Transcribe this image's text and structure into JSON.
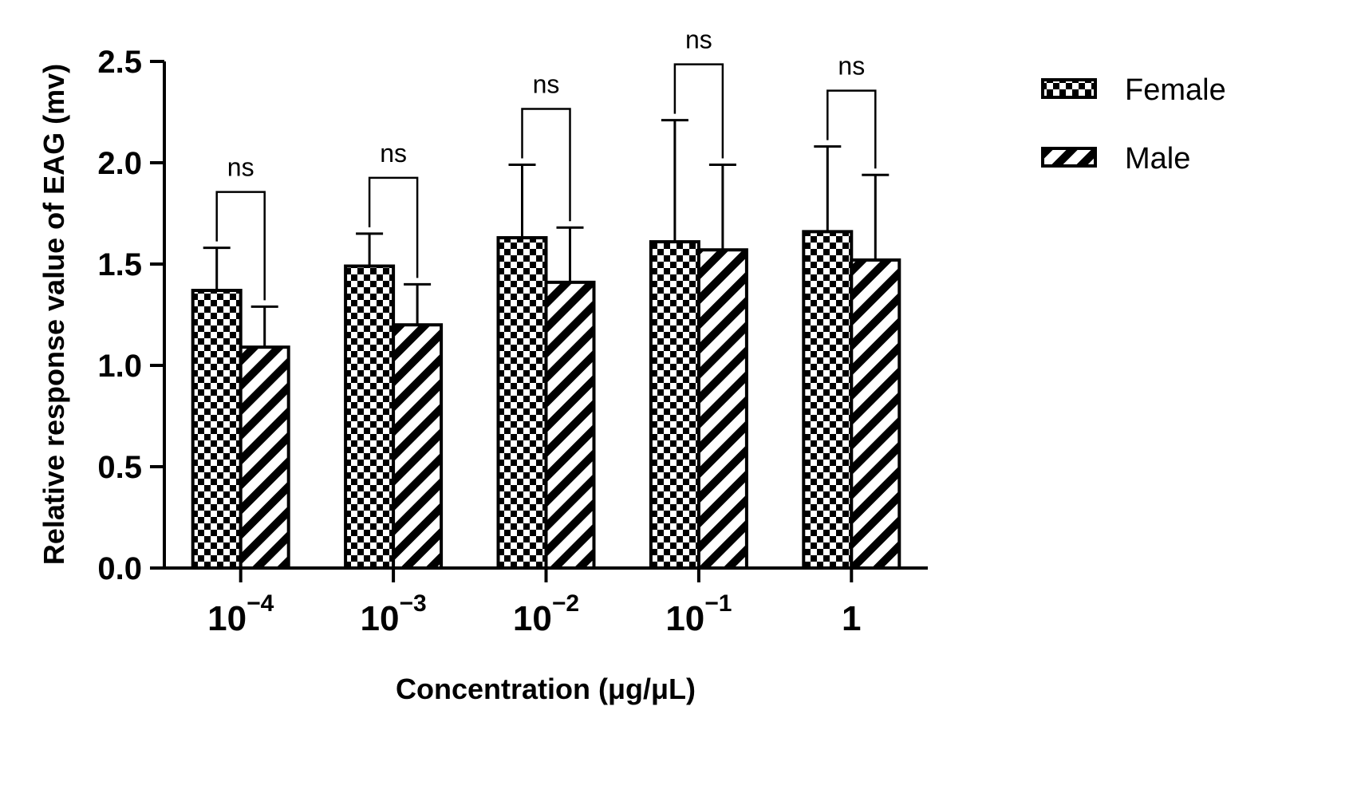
{
  "chart_data": {
    "type": "bar",
    "title": "",
    "xlabel": "Concentration (μg/μL)",
    "ylabel": "Relative response value of EAG (mv)",
    "ylim": [
      0,
      2.5
    ],
    "yticks": [
      "0.0",
      "0.5",
      "1.0",
      "1.5",
      "2.0",
      "2.5"
    ],
    "categories": [
      {
        "base": "10",
        "exp": "−4"
      },
      {
        "base": "10",
        "exp": "−3"
      },
      {
        "base": "10",
        "exp": "−2"
      },
      {
        "base": "10",
        "exp": "−1"
      },
      {
        "base": "1",
        "exp": ""
      }
    ],
    "series": [
      {
        "name": "Female",
        "pattern": "checkerboard",
        "values": [
          1.37,
          1.49,
          1.63,
          1.61,
          1.66
        ],
        "errors": [
          0.21,
          0.16,
          0.36,
          0.6,
          0.42
        ]
      },
      {
        "name": "Male",
        "pattern": "diagonal-stripes",
        "values": [
          1.09,
          1.2,
          1.41,
          1.57,
          1.52
        ],
        "errors": [
          0.2,
          0.2,
          0.27,
          0.42,
          0.42
        ]
      }
    ],
    "annotations": [
      "ns",
      "ns",
      "ns",
      "ns",
      "ns"
    ],
    "legend": {
      "position": "top-right"
    }
  }
}
